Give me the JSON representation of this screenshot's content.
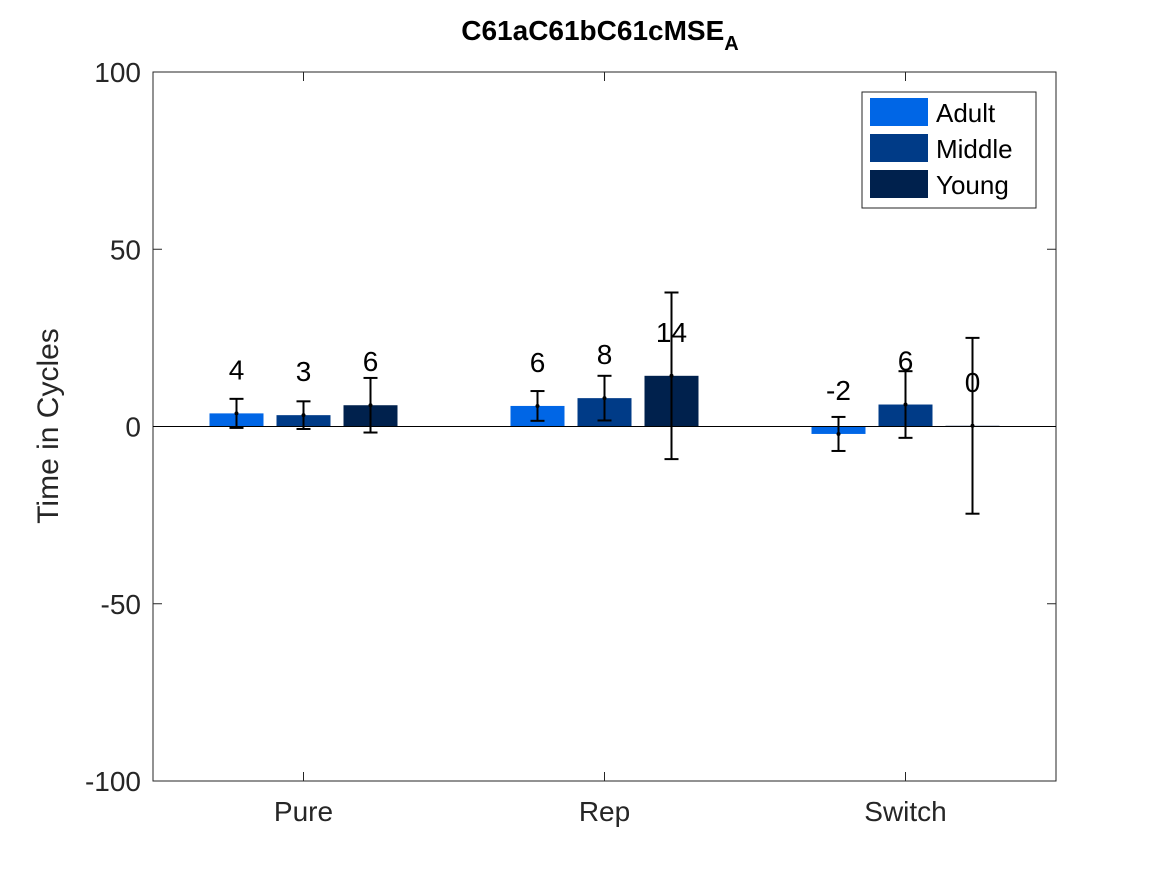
{
  "chart_data": {
    "type": "bar",
    "title": "C61aC61bC61cMSE",
    "title_subscript": "A",
    "xlabel": "",
    "ylabel": "Time in Cycles",
    "ylim": [
      -100,
      100
    ],
    "yticks": [
      -100,
      -50,
      0,
      50,
      100
    ],
    "yticks_text": [
      "-100",
      "-50",
      "0",
      "50",
      "100"
    ],
    "categories": [
      "Pure",
      "Rep",
      "Switch"
    ],
    "legend_position": "top-right",
    "grid": false,
    "series": [
      {
        "name": "Adult",
        "color": "#0066e6",
        "values": [
          3.7,
          5.8,
          -2.1
        ],
        "err_low": [
          -0.4,
          1.6,
          -6.9
        ],
        "err_high": [
          7.8,
          10.0,
          2.7
        ],
        "labels": [
          "4",
          "6",
          "-2"
        ]
      },
      {
        "name": "Middle",
        "color": "#003b87",
        "values": [
          3.2,
          8.0,
          6.2
        ],
        "err_low": [
          -0.7,
          1.7,
          -3.2
        ],
        "err_high": [
          7.1,
          14.3,
          15.6
        ],
        "labels": [
          "3",
          "8",
          "6"
        ]
      },
      {
        "name": "Young",
        "color": "#00214d",
        "values": [
          6.0,
          14.3,
          0.2
        ],
        "err_low": [
          -1.7,
          -9.2,
          -24.6
        ],
        "err_high": [
          13.7,
          37.8,
          25.0
        ],
        "labels": [
          "6",
          "14",
          "0"
        ]
      }
    ]
  }
}
